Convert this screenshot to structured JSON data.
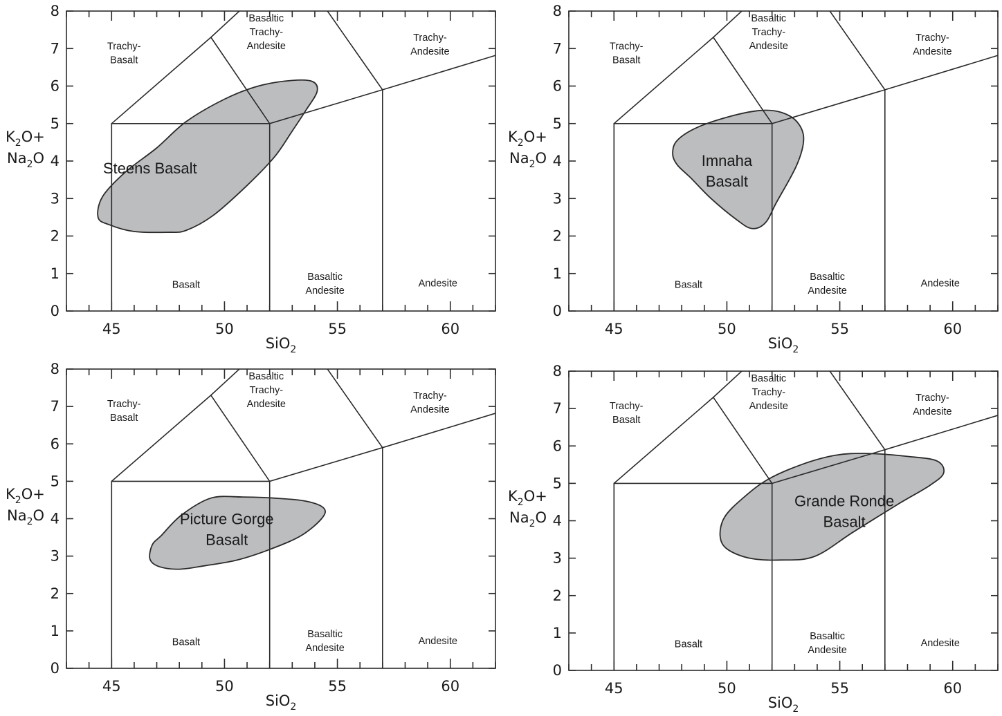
{
  "chart_data": [
    {
      "type": "tas-classification",
      "xlabel": "SiO",
      "xlabel_sub": "2",
      "ylabel_line1": [
        "K",
        "2",
        "O+"
      ],
      "ylabel_line2": [
        "Na",
        "2",
        "O"
      ],
      "xlim": [
        43,
        62
      ],
      "ylim": [
        0,
        8
      ],
      "xticks": [
        45,
        50,
        55,
        60
      ],
      "yticks": [
        0,
        1,
        2,
        3,
        4,
        5,
        6,
        7,
        8
      ],
      "fields": [
        "Trachy-\nBasalt",
        "Basaltic\nTrachy-\nAndesite",
        "Trachy-\nAndesite",
        "Basalt",
        "Basaltic\nAndesite",
        "Andesite"
      ],
      "series": [
        {
          "name": "Steens Basalt",
          "label_lines": [
            "Steens Basalt"
          ],
          "approx_sio2_range": [
            44.3,
            54.2
          ],
          "approx_alkali_range": [
            2.05,
            6.15
          ]
        }
      ]
    },
    {
      "type": "tas-classification",
      "xlabel": "SiO",
      "xlabel_sub": "2",
      "ylabel_line1": [
        "K",
        "2",
        "O+"
      ],
      "ylabel_line2": [
        "Na",
        "2",
        "O"
      ],
      "xlim": [
        43,
        62
      ],
      "ylim": [
        0,
        8
      ],
      "xticks": [
        45,
        50,
        55,
        60
      ],
      "yticks": [
        0,
        1,
        2,
        3,
        4,
        5,
        6,
        7,
        8
      ],
      "fields": [
        "Trachy-\nBasalt",
        "Basaltic\nTrachy-\nAndesite",
        "Trachy-\nAndesite",
        "Basalt",
        "Basaltic\nAndesite",
        "Andesite"
      ],
      "series": [
        {
          "name": "Imnaha Basalt",
          "label_lines": [
            "Imnaha",
            "Basalt"
          ],
          "approx_sio2_range": [
            47.4,
            53.8
          ],
          "approx_alkali_range": [
            2.2,
            5.4
          ]
        }
      ]
    },
    {
      "type": "tas-classification",
      "xlabel": "SiO",
      "xlabel_sub": "2",
      "ylabel_line1": [
        "K",
        "2",
        "O+"
      ],
      "ylabel_line2": [
        "Na",
        "2",
        "O"
      ],
      "xlim": [
        43,
        62
      ],
      "ylim": [
        0,
        8
      ],
      "xticks": [
        45,
        50,
        55,
        60
      ],
      "yticks": [
        0,
        1,
        2,
        3,
        4,
        5,
        6,
        7,
        8
      ],
      "fields": [
        "Trachy-\nBasalt",
        "Basaltic\nTrachy-\nAndesite",
        "Trachy-\nAndesite",
        "Basalt",
        "Basaltic\nAndesite",
        "Andesite"
      ],
      "series": [
        {
          "name": "Picture Gorge Basalt",
          "label_lines": [
            "Picture Gorge",
            "Basalt"
          ],
          "approx_sio2_range": [
            46.8,
            54.7
          ],
          "approx_alkali_range": [
            2.65,
            4.6
          ]
        }
      ]
    },
    {
      "type": "tas-classification",
      "xlabel": "SiO",
      "xlabel_sub": "2",
      "ylabel_line1": [
        "K",
        "2",
        "O+"
      ],
      "ylabel_line2": [
        "Na",
        "2",
        "O"
      ],
      "xlim": [
        43,
        62
      ],
      "ylim": [
        0,
        8
      ],
      "xticks": [
        45,
        50,
        55,
        60
      ],
      "yticks": [
        0,
        1,
        2,
        3,
        4,
        5,
        6,
        7,
        8
      ],
      "fields": [
        "Trachy-\nBasalt",
        "Basaltic\nTrachy-\nAndesite",
        "Trachy-\nAndesite",
        "Basalt",
        "Basaltic\nAndesite",
        "Andesite"
      ],
      "series": [
        {
          "name": "Grande Ronde Basalt",
          "label_lines": [
            "Grande Ronde",
            "Basalt"
          ],
          "approx_sio2_range": [
            49.7,
            59.6
          ],
          "approx_alkali_range": [
            2.95,
            5.85
          ]
        }
      ]
    }
  ],
  "colors": {
    "fill": "#bcbdbf",
    "line": "#2a2a2a",
    "text": "#1a1a1a"
  }
}
